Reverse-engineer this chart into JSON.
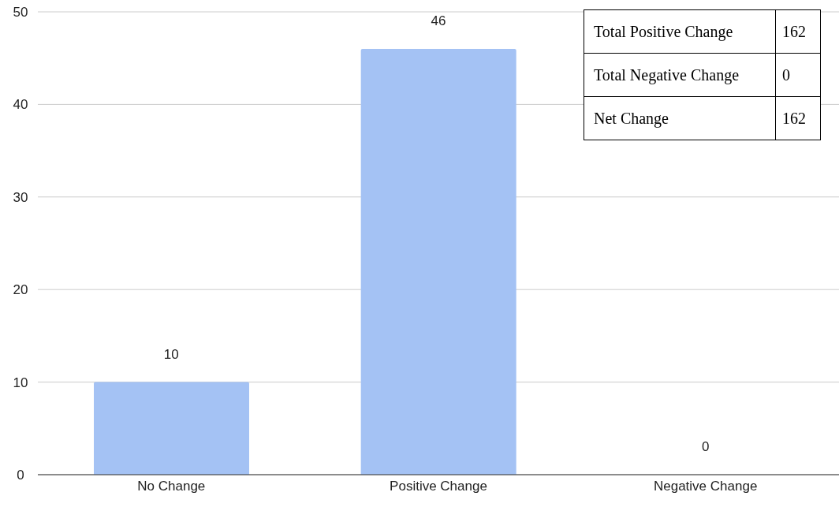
{
  "chart_data": {
    "type": "bar",
    "categories": [
      "No Change",
      "Positive Change",
      "Negative Change"
    ],
    "values": [
      10,
      46,
      0
    ],
    "color": "#a4c2f4",
    "ylim": [
      0,
      50
    ],
    "yticks": [
      0,
      10,
      20,
      30,
      40,
      50
    ],
    "grid": "y",
    "data_labels": true,
    "annotations": [
      "Total Positive Change",
      "162",
      "Total Negative Change",
      "0",
      "Net Change",
      "162"
    ]
  }
}
